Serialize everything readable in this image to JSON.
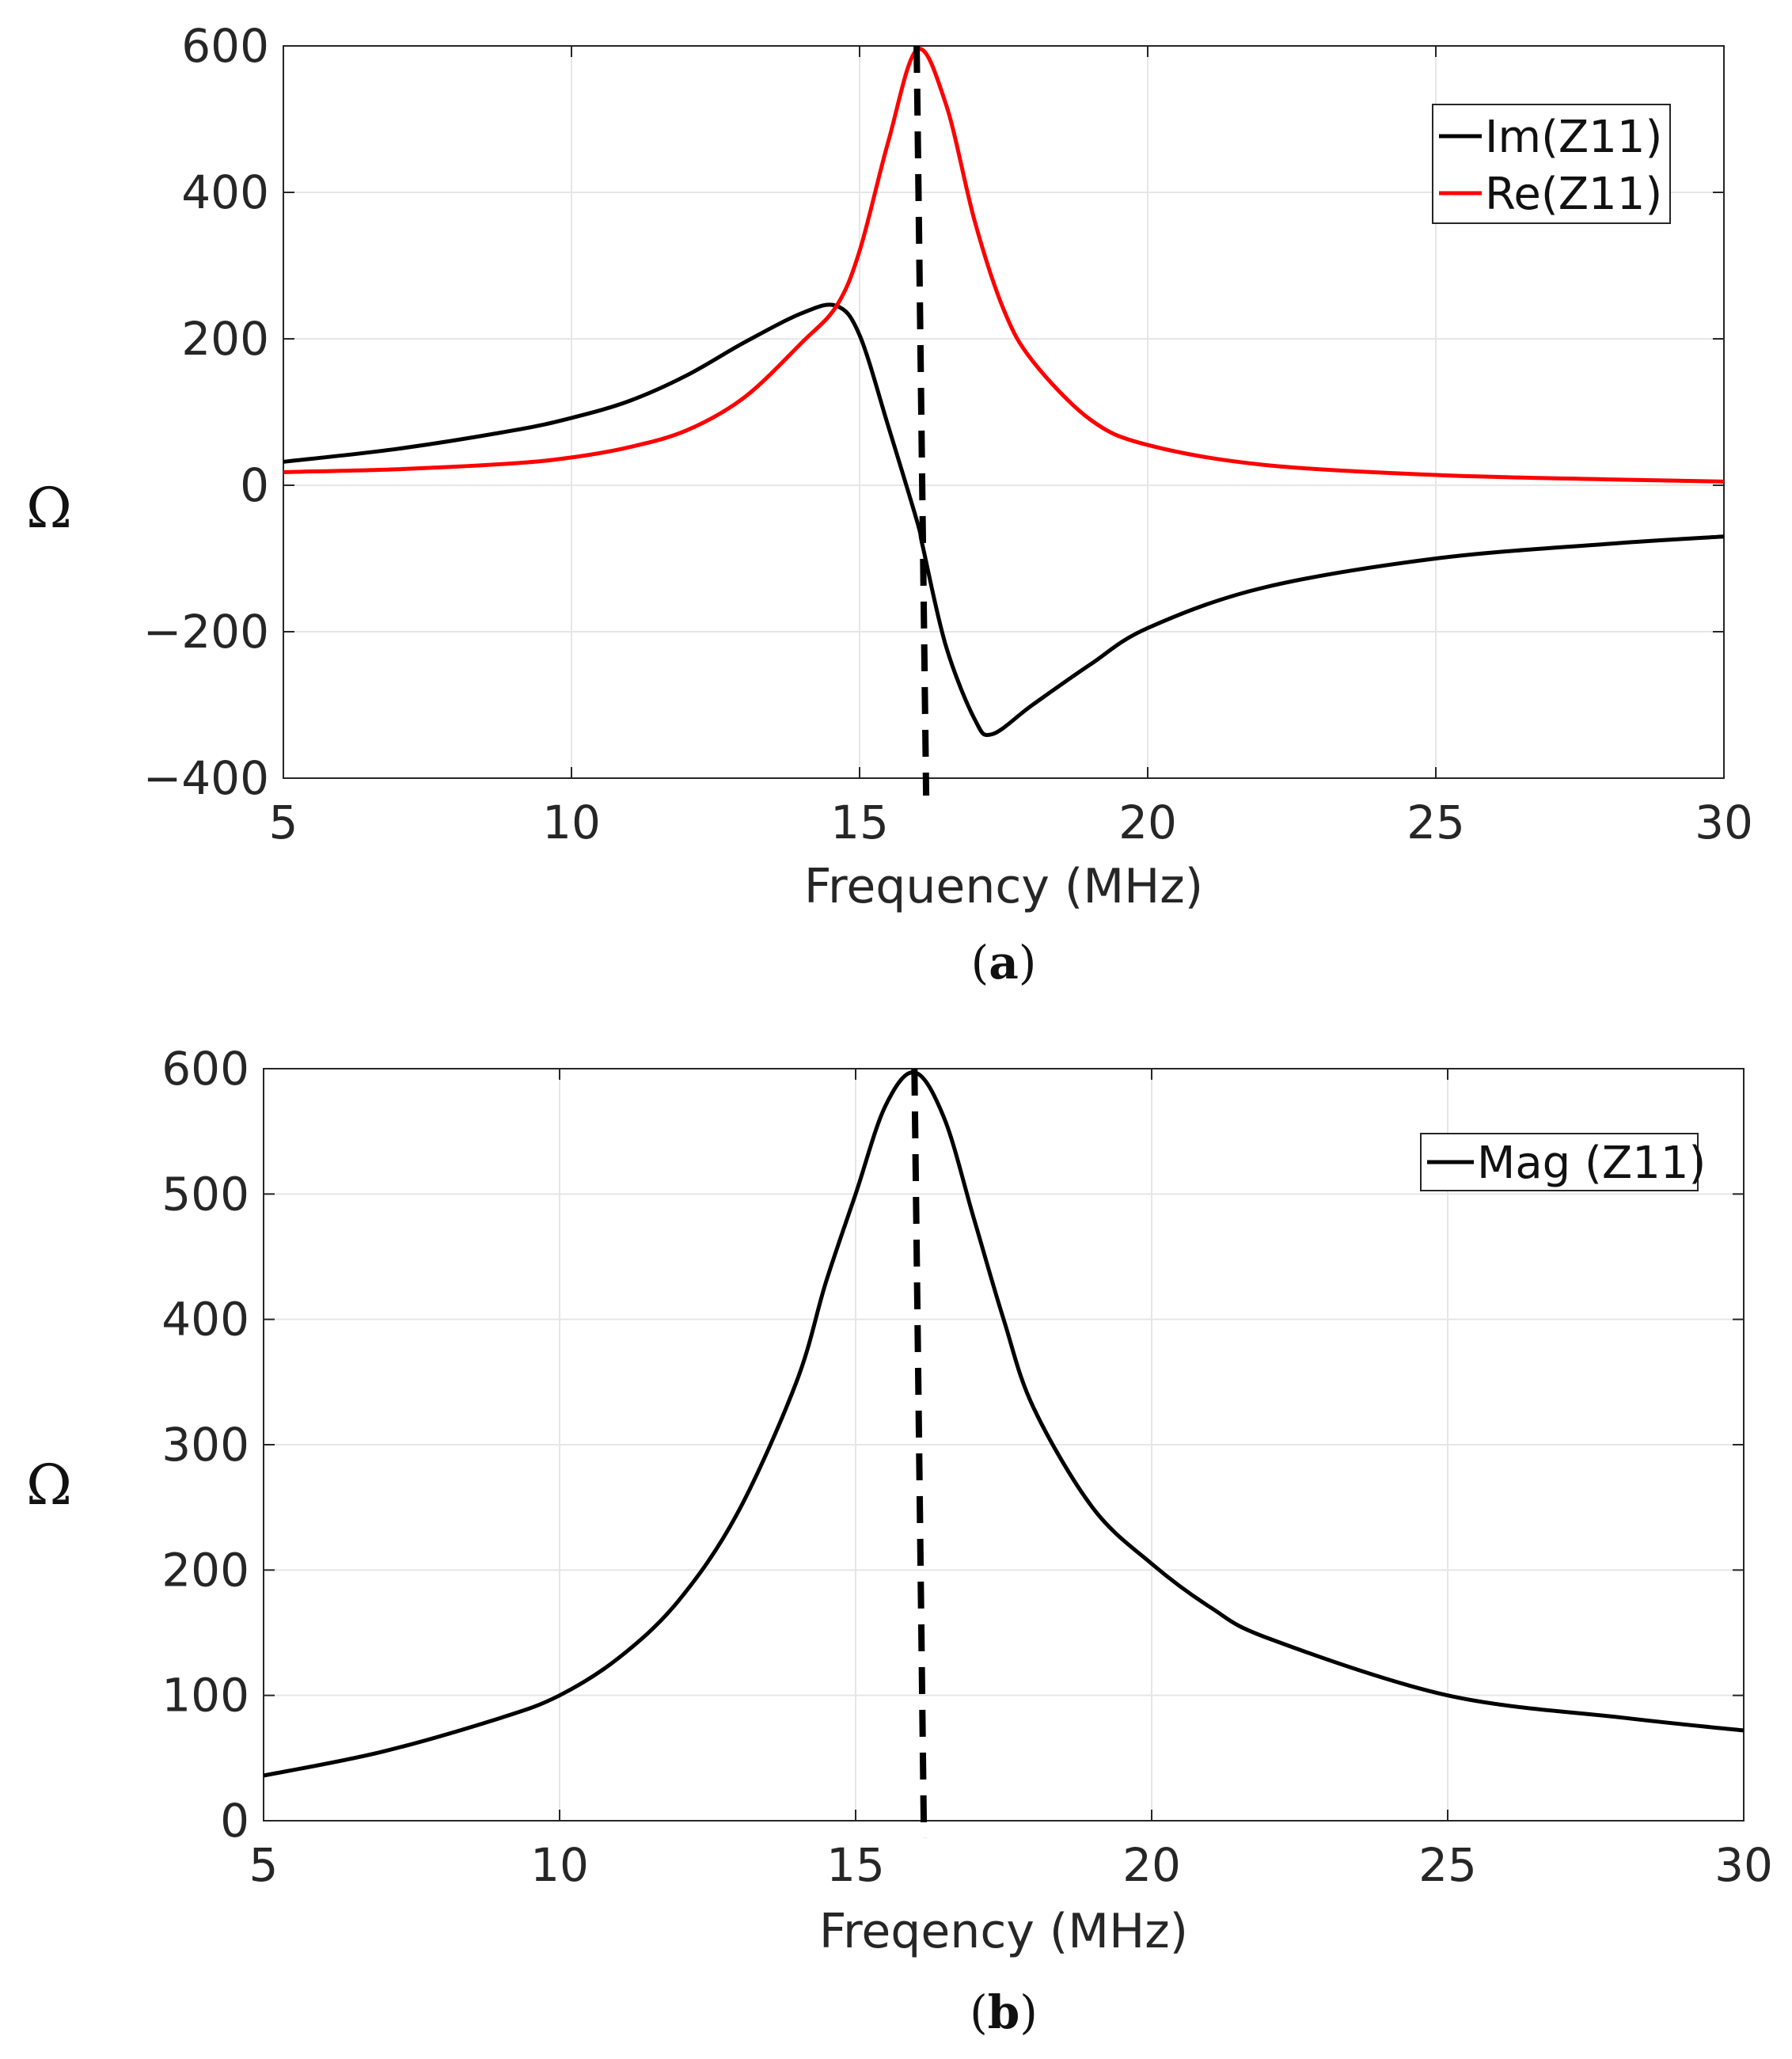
{
  "chart_data": [
    {
      "id": "a",
      "type": "line",
      "caption_letter": "a",
      "xlabel": "Frequency (MHz)",
      "ylabel": "Ω",
      "xlim": [
        5,
        30
      ],
      "ylim": [
        -400,
        600
      ],
      "xticks": [
        5,
        10,
        15,
        20,
        25,
        30
      ],
      "yticks": [
        -400,
        -200,
        0,
        200,
        400,
        600
      ],
      "ytick_labels": [
        "−400",
        "−200",
        "0",
        "200",
        "400",
        "600"
      ],
      "grid": true,
      "legend_position": "top-right",
      "vline_x": 16.1,
      "series": [
        {
          "name": "Im(Z11)",
          "color": "#000000",
          "x": [
            5,
            7,
            9,
            10,
            11,
            12,
            13,
            14,
            14.6,
            15,
            15.5,
            16,
            16.1,
            16.5,
            17,
            17.3,
            18,
            19,
            20,
            22,
            25,
            28,
            30
          ],
          "y": [
            32,
            50,
            75,
            92,
            115,
            150,
            195,
            235,
            245,
            205,
            80,
            -50,
            -85,
            -220,
            -320,
            -340,
            -300,
            -245,
            -195,
            -140,
            -100,
            -80,
            -70
          ]
        },
        {
          "name": "Re(Z11)",
          "color": "#ff0000",
          "x": [
            5,
            7,
            9,
            10,
            11,
            12,
            13,
            14,
            14.6,
            15,
            15.5,
            16,
            16.5,
            17,
            17.5,
            18,
            19,
            20,
            22,
            25,
            28,
            30
          ],
          "y": [
            18,
            22,
            30,
            38,
            52,
            75,
            120,
            195,
            245,
            320,
            470,
            595,
            520,
            360,
            240,
            170,
            90,
            55,
            28,
            14,
            8,
            5
          ]
        }
      ]
    },
    {
      "id": "b",
      "type": "line",
      "caption_letter": "b",
      "xlabel": "Freqency (MHz)",
      "ylabel": "Ω",
      "xlim": [
        5,
        30
      ],
      "ylim": [
        0,
        600
      ],
      "xticks": [
        5,
        10,
        15,
        20,
        25,
        30
      ],
      "yticks": [
        0,
        100,
        200,
        300,
        400,
        500,
        600
      ],
      "ytick_labels": [
        "0",
        "100",
        "200",
        "300",
        "400",
        "500",
        "600"
      ],
      "grid": true,
      "legend_position": "top-right",
      "vline_x": 16.1,
      "series": [
        {
          "name": "Mag (Z11)",
          "color": "#000000",
          "x": [
            5,
            7,
            9,
            10,
            11,
            12,
            13,
            14,
            14.5,
            15,
            15.5,
            16,
            16.5,
            17,
            17.5,
            18,
            19,
            20,
            21,
            22,
            25,
            28,
            30
          ],
          "y": [
            36,
            55,
            82,
            100,
            130,
            175,
            245,
            350,
            430,
            500,
            570,
            597,
            560,
            480,
            400,
            330,
            250,
            205,
            170,
            145,
            100,
            82,
            72
          ]
        }
      ]
    }
  ]
}
